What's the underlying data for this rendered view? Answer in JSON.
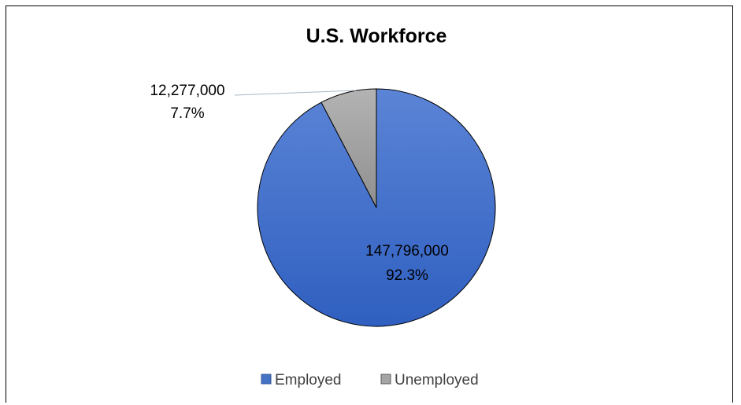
{
  "chart_data": {
    "type": "pie",
    "title": "U.S. Workforce",
    "categories": [
      "Employed",
      "Unemployed"
    ],
    "values": [
      147796000,
      12277000
    ],
    "value_labels": [
      "147,796,000",
      "12,277,000"
    ],
    "percent_labels": [
      "92.3%",
      "7.7%"
    ],
    "colors": [
      "#4472c4",
      "#a5a5a5"
    ],
    "legend": {
      "position": "bottom",
      "entries": [
        "Employed",
        "Unemployed"
      ]
    }
  }
}
